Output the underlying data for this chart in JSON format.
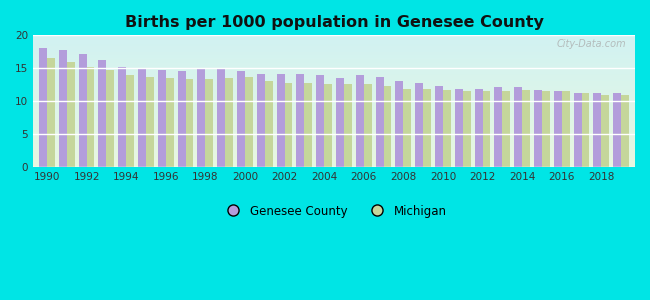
{
  "title": "Births per 1000 population in Genesee County",
  "years": [
    1990,
    1991,
    1992,
    1993,
    1994,
    1995,
    1996,
    1997,
    1998,
    1999,
    2000,
    2001,
    2002,
    2003,
    2004,
    2005,
    2006,
    2007,
    2008,
    2009,
    2010,
    2011,
    2012,
    2013,
    2014,
    2015,
    2016,
    2017,
    2018,
    2019
  ],
  "genesee": [
    18.0,
    17.7,
    17.1,
    16.2,
    15.2,
    15.1,
    14.8,
    14.6,
    14.9,
    15.0,
    14.6,
    14.2,
    14.2,
    14.1,
    13.9,
    13.5,
    13.9,
    13.7,
    13.1,
    12.8,
    12.3,
    11.9,
    11.9,
    12.2,
    12.2,
    11.7,
    11.6,
    11.3,
    11.2,
    11.2
  ],
  "michigan": [
    16.6,
    16.0,
    15.2,
    14.8,
    13.9,
    13.6,
    13.5,
    13.4,
    13.4,
    13.5,
    13.6,
    13.0,
    12.8,
    12.8,
    12.6,
    12.6,
    12.6,
    12.3,
    11.9,
    11.8,
    11.7,
    11.5,
    11.5,
    11.5,
    11.7,
    11.6,
    11.5,
    11.2,
    11.0,
    10.9
  ],
  "genesee_color": "#b39ddb",
  "michigan_color": "#c5d69b",
  "ylim": [
    0,
    20
  ],
  "yticks": [
    0,
    5,
    10,
    15,
    20
  ],
  "xtick_years": [
    1990,
    1992,
    1994,
    1996,
    1998,
    2000,
    2002,
    2004,
    2006,
    2008,
    2010,
    2012,
    2014,
    2016,
    2018
  ],
  "watermark": "City-Data.com",
  "fig_bg": "#00e5e5",
  "bar_width": 0.4
}
